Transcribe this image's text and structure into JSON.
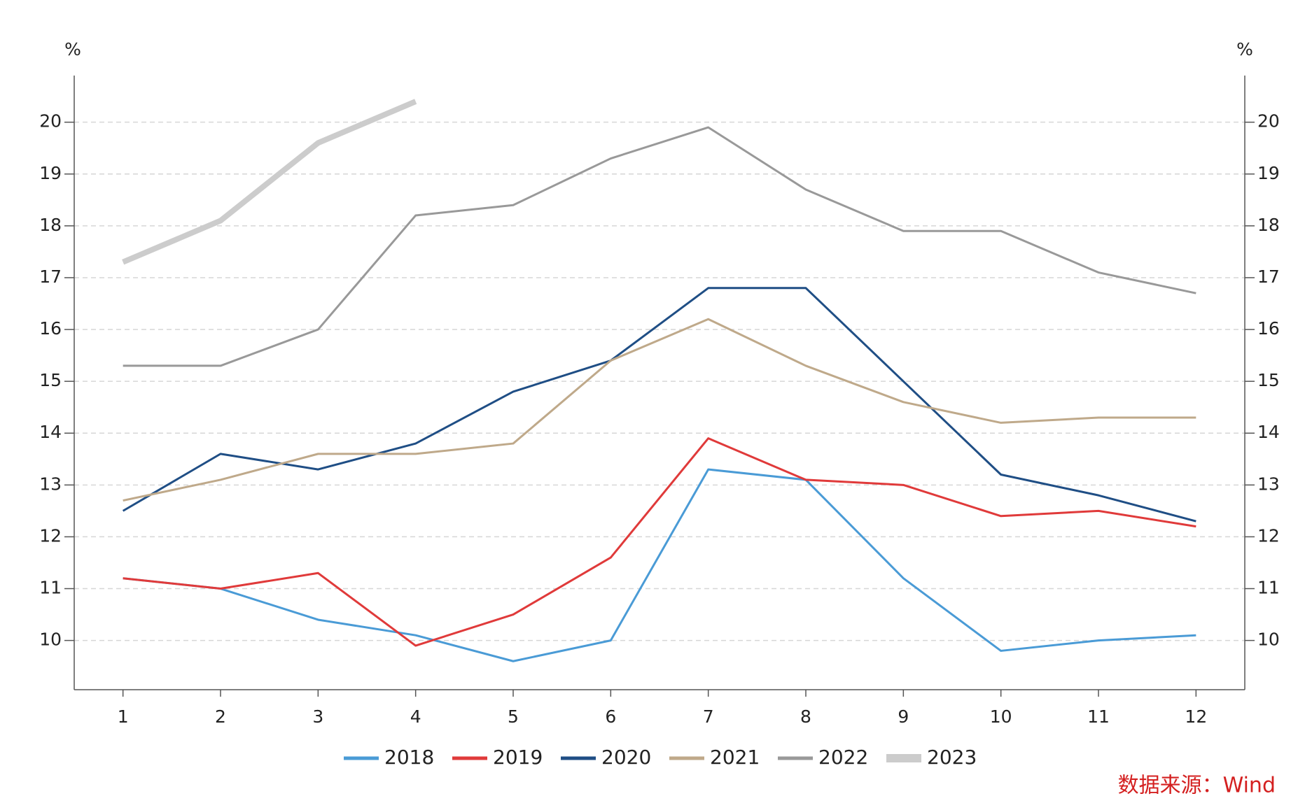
{
  "chart_data": {
    "type": "line",
    "y_label": "%",
    "y2_label": "%",
    "source": "数据来源：Wind",
    "categories": [
      "1",
      "2",
      "3",
      "4",
      "5",
      "6",
      "7",
      "8",
      "9",
      "10",
      "11",
      "12"
    ],
    "ylim": [
      9.05,
      20.9
    ],
    "yticks": [
      10,
      11,
      12,
      13,
      14,
      15,
      16,
      17,
      18,
      19,
      20
    ],
    "y2lim": [
      9.05,
      20.9
    ],
    "y2ticks": [
      10,
      11,
      12,
      13,
      14,
      15,
      16,
      17,
      18,
      19,
      20
    ],
    "grid": true,
    "legend": "bottom",
    "series": [
      {
        "name": "2018",
        "color": "#4a9bd6",
        "line_width": 3,
        "values": [
          11.2,
          11.0,
          10.4,
          10.1,
          9.6,
          10.0,
          13.3,
          13.1,
          11.2,
          9.8,
          10.0,
          10.1
        ]
      },
      {
        "name": "2019",
        "color": "#e03a3a",
        "line_width": 3,
        "values": [
          11.2,
          11.0,
          11.3,
          9.9,
          10.5,
          11.6,
          13.9,
          13.1,
          13.0,
          12.4,
          12.5,
          12.2
        ]
      },
      {
        "name": "2020",
        "color": "#1f4e85",
        "line_width": 3,
        "values": [
          12.5,
          13.6,
          13.3,
          13.8,
          14.8,
          15.4,
          16.8,
          16.8,
          15.0,
          13.2,
          12.8,
          12.3
        ]
      },
      {
        "name": "2021",
        "color": "#bfa98a",
        "line_width": 3,
        "values": [
          12.7,
          13.1,
          13.6,
          13.6,
          13.8,
          15.4,
          16.2,
          15.3,
          14.6,
          14.2,
          14.3,
          14.3
        ]
      },
      {
        "name": "2022",
        "color": "#999999",
        "line_width": 3,
        "values": [
          15.3,
          15.3,
          16.0,
          18.2,
          18.4,
          19.3,
          19.9,
          18.7,
          17.9,
          17.9,
          17.1,
          16.7
        ]
      },
      {
        "name": "2023",
        "color": "#cccccc",
        "line_width": 8,
        "values": [
          17.3,
          18.1,
          19.6,
          20.4,
          null,
          null,
          null,
          null,
          null,
          null,
          null,
          null
        ]
      }
    ]
  }
}
